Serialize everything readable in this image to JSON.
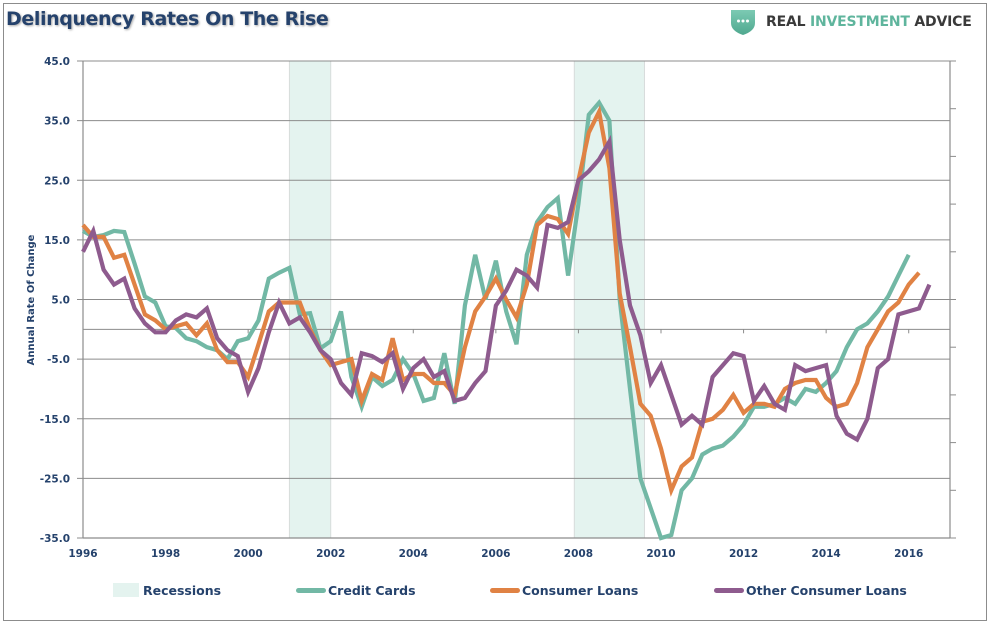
{
  "header": {
    "title": "Delinquency Rates On The Rise",
    "brand": {
      "word1": "REAL",
      "word2": "INVESTMENT",
      "word3": "ADVICE",
      "icon": "shield-dots-icon",
      "accent_color": "#5fb59d"
    }
  },
  "chart_data": {
    "type": "line",
    "title": "Delinquency Rates On The Rise",
    "xlabel": "",
    "ylabel": "Annual Rate Of Change",
    "xlim": [
      1996,
      2017
    ],
    "ylim": [
      -35,
      45
    ],
    "yticks": [
      45,
      35,
      25,
      15,
      5,
      -5,
      -15,
      -25,
      -35
    ],
    "ytick_labels": [
      "45.0",
      "35.0",
      "25.0",
      "15.0",
      "5.0",
      "-5.0",
      "-15.0",
      "-25.0",
      "-35.0"
    ],
    "xticks": [
      1996,
      1998,
      2000,
      2002,
      2004,
      2006,
      2008,
      2010,
      2012,
      2014,
      2016
    ],
    "xtick_labels": [
      "1996",
      "1998",
      "2000",
      "2002",
      "2004",
      "2006",
      "2008",
      "2010",
      "2012",
      "2014",
      "2016"
    ],
    "grid": true,
    "legend_position": "bottom",
    "recessions": [
      {
        "start": 2001.0,
        "end": 2002.0
      },
      {
        "start": 2007.9,
        "end": 2009.6
      }
    ],
    "x_step_years": 0.25,
    "x_start": 1996.0,
    "series": [
      {
        "name": "Credit Cards",
        "color": "#72b8a5",
        "values": [
          16.5,
          15.5,
          15.8,
          16.5,
          16.3,
          11.0,
          5.5,
          4.5,
          0.5,
          0.2,
          -1.5,
          -2.0,
          -3.0,
          -3.5,
          -5.0,
          -2.0,
          -1.5,
          1.5,
          8.5,
          9.5,
          10.3,
          2.5,
          2.7,
          -3.2,
          -2.0,
          3.0,
          -8.0,
          -13.0,
          -8.0,
          -9.5,
          -8.5,
          -5.0,
          -7.5,
          -12.0,
          -11.5,
          -4.0,
          -12.5,
          4.0,
          12.5,
          5.0,
          11.5,
          3.0,
          -2.5,
          12.5,
          18.0,
          20.5,
          22.0,
          9.0,
          21.0,
          36.0,
          38.0,
          35.0,
          5.0,
          -10.0,
          -25.0,
          -30.0,
          -35.0,
          -34.5,
          -27.0,
          -25.0,
          -21.0,
          -20.0,
          -19.5,
          -18.0,
          -16.0,
          -13.0,
          -13.0,
          -12.5,
          -11.5,
          -12.5,
          -10.0,
          -10.5,
          -9.0,
          -7.0,
          -3.0,
          0.0,
          1.0,
          3.0,
          5.5,
          9.0,
          12.5
        ]
      },
      {
        "name": "Consumer Loans",
        "color": "#e08244",
        "values": [
          17.5,
          15.5,
          15.5,
          12.0,
          12.5,
          7.5,
          2.5,
          1.5,
          0.0,
          0.5,
          1.0,
          -1.0,
          1.0,
          -3.5,
          -5.5,
          -5.5,
          -8.0,
          -2.5,
          3.0,
          4.5,
          4.5,
          4.5,
          0.0,
          -3.5,
          -6.0,
          -5.5,
          -5.0,
          -12.0,
          -7.5,
          -8.5,
          -1.5,
          -8.5,
          -7.5,
          -7.5,
          -9.0,
          -9.0,
          -11.0,
          -3.0,
          3.0,
          5.5,
          8.5,
          5.0,
          2.0,
          7.5,
          17.5,
          19.0,
          18.5,
          16.0,
          25.0,
          33.0,
          36.5,
          27.0,
          6.0,
          -3.0,
          -12.5,
          -14.5,
          -20.0,
          -27.0,
          -23.0,
          -21.5,
          -15.5,
          -15.0,
          -13.5,
          -11.0,
          -14.0,
          -12.5,
          -12.5,
          -13.0,
          -10.0,
          -9.0,
          -8.5,
          -8.5,
          -11.5,
          -13.0,
          -12.5,
          -9.0,
          -3.0,
          0.0,
          3.0,
          4.5,
          7.5,
          9.5
        ]
      },
      {
        "name": "Other Consumer Loans",
        "color": "#8e5b8e",
        "values": [
          13.0,
          16.5,
          10.0,
          7.5,
          8.5,
          3.5,
          1.0,
          -0.5,
          -0.5,
          1.5,
          2.5,
          2.0,
          3.5,
          -1.5,
          -3.5,
          -4.5,
          -10.5,
          -6.5,
          -0.5,
          4.5,
          1.0,
          2.0,
          -0.5,
          -3.5,
          -5.0,
          -9.0,
          -11.0,
          -4.0,
          -4.5,
          -5.5,
          -4.0,
          -10.0,
          -6.5,
          -5.0,
          -8.0,
          -7.0,
          -12.0,
          -11.5,
          -9.0,
          -7.0,
          4.0,
          6.5,
          10.0,
          9.0,
          7.0,
          17.5,
          17.0,
          18.0,
          25.0,
          26.5,
          28.5,
          31.5,
          15.0,
          4.0,
          -1.0,
          -9.0,
          -6.0,
          -11.0,
          -16.0,
          -14.5,
          -16.0,
          -8.0,
          -6.0,
          -4.0,
          -4.5,
          -12.0,
          -9.5,
          -12.5,
          -13.5,
          -6.0,
          -7.0,
          -6.5,
          -6.0,
          -14.5,
          -17.5,
          -18.5,
          -15.0,
          -6.5,
          -5.0,
          2.5,
          3.0,
          3.5,
          7.5
        ]
      }
    ]
  },
  "legend": {
    "items": [
      {
        "label": "Recessions",
        "kind": "box",
        "color": "#e4f3ef"
      },
      {
        "label": "Credit Cards",
        "kind": "line",
        "color": "#72b8a5"
      },
      {
        "label": "Consumer Loans",
        "kind": "line",
        "color": "#e08244"
      },
      {
        "label": "Other Consumer Loans",
        "kind": "line",
        "color": "#8e5b8e"
      }
    ]
  }
}
